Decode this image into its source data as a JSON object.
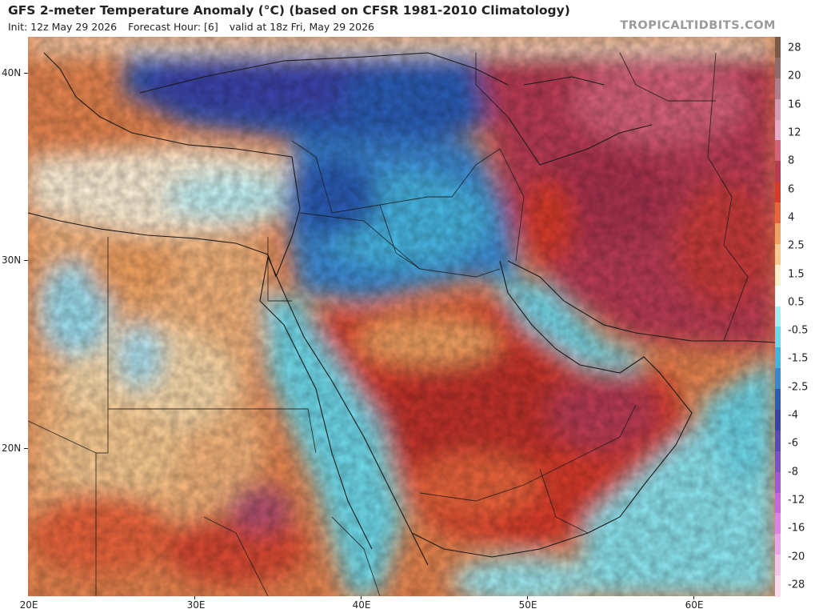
{
  "header": {
    "title": "GFS 2-meter Temperature Anomaly (°C) (based on CFSR 1981-2010 Climatology)",
    "init": "Init: 12z May 29 2026",
    "forecast_hour": "Forecast Hour: [6]",
    "valid": "valid at 18z Fri, May 29 2026"
  },
  "brand": "TROPICALTIDBITS.COM",
  "map": {
    "lat_labels": [
      "40N",
      "30N",
      "20N"
    ],
    "lon_labels": [
      "20E",
      "30E",
      "40E",
      "50E",
      "60E"
    ]
  },
  "colorbar": {
    "labels": [
      "28",
      "20",
      "16",
      "12",
      "8",
      "6",
      "4",
      "2.5",
      "1.5",
      "0.5",
      "-0.5",
      "-1.5",
      "-2.5",
      "-4",
      "-6",
      "-8",
      "-12",
      "-16",
      "-20",
      "-28"
    ],
    "colors": [
      "#7a5a44",
      "#8e6a6a",
      "#b07d8c",
      "#d49ab4",
      "#e8a8c8",
      "#d4607a",
      "#b83a52",
      "#d83a2a",
      "#e8643a",
      "#f0a060",
      "#f6c890",
      "#fbeec8",
      "#ffffff",
      "#a8eef0",
      "#6ed8e8",
      "#46b4e0",
      "#3a86d0",
      "#2c5cb4",
      "#3a42a8",
      "#5a4ab8",
      "#7a52c8",
      "#a258d4",
      "#cc64dc",
      "#e080e4",
      "#eca4e8",
      "#f4c4e8",
      "#fadaec"
    ]
  }
}
